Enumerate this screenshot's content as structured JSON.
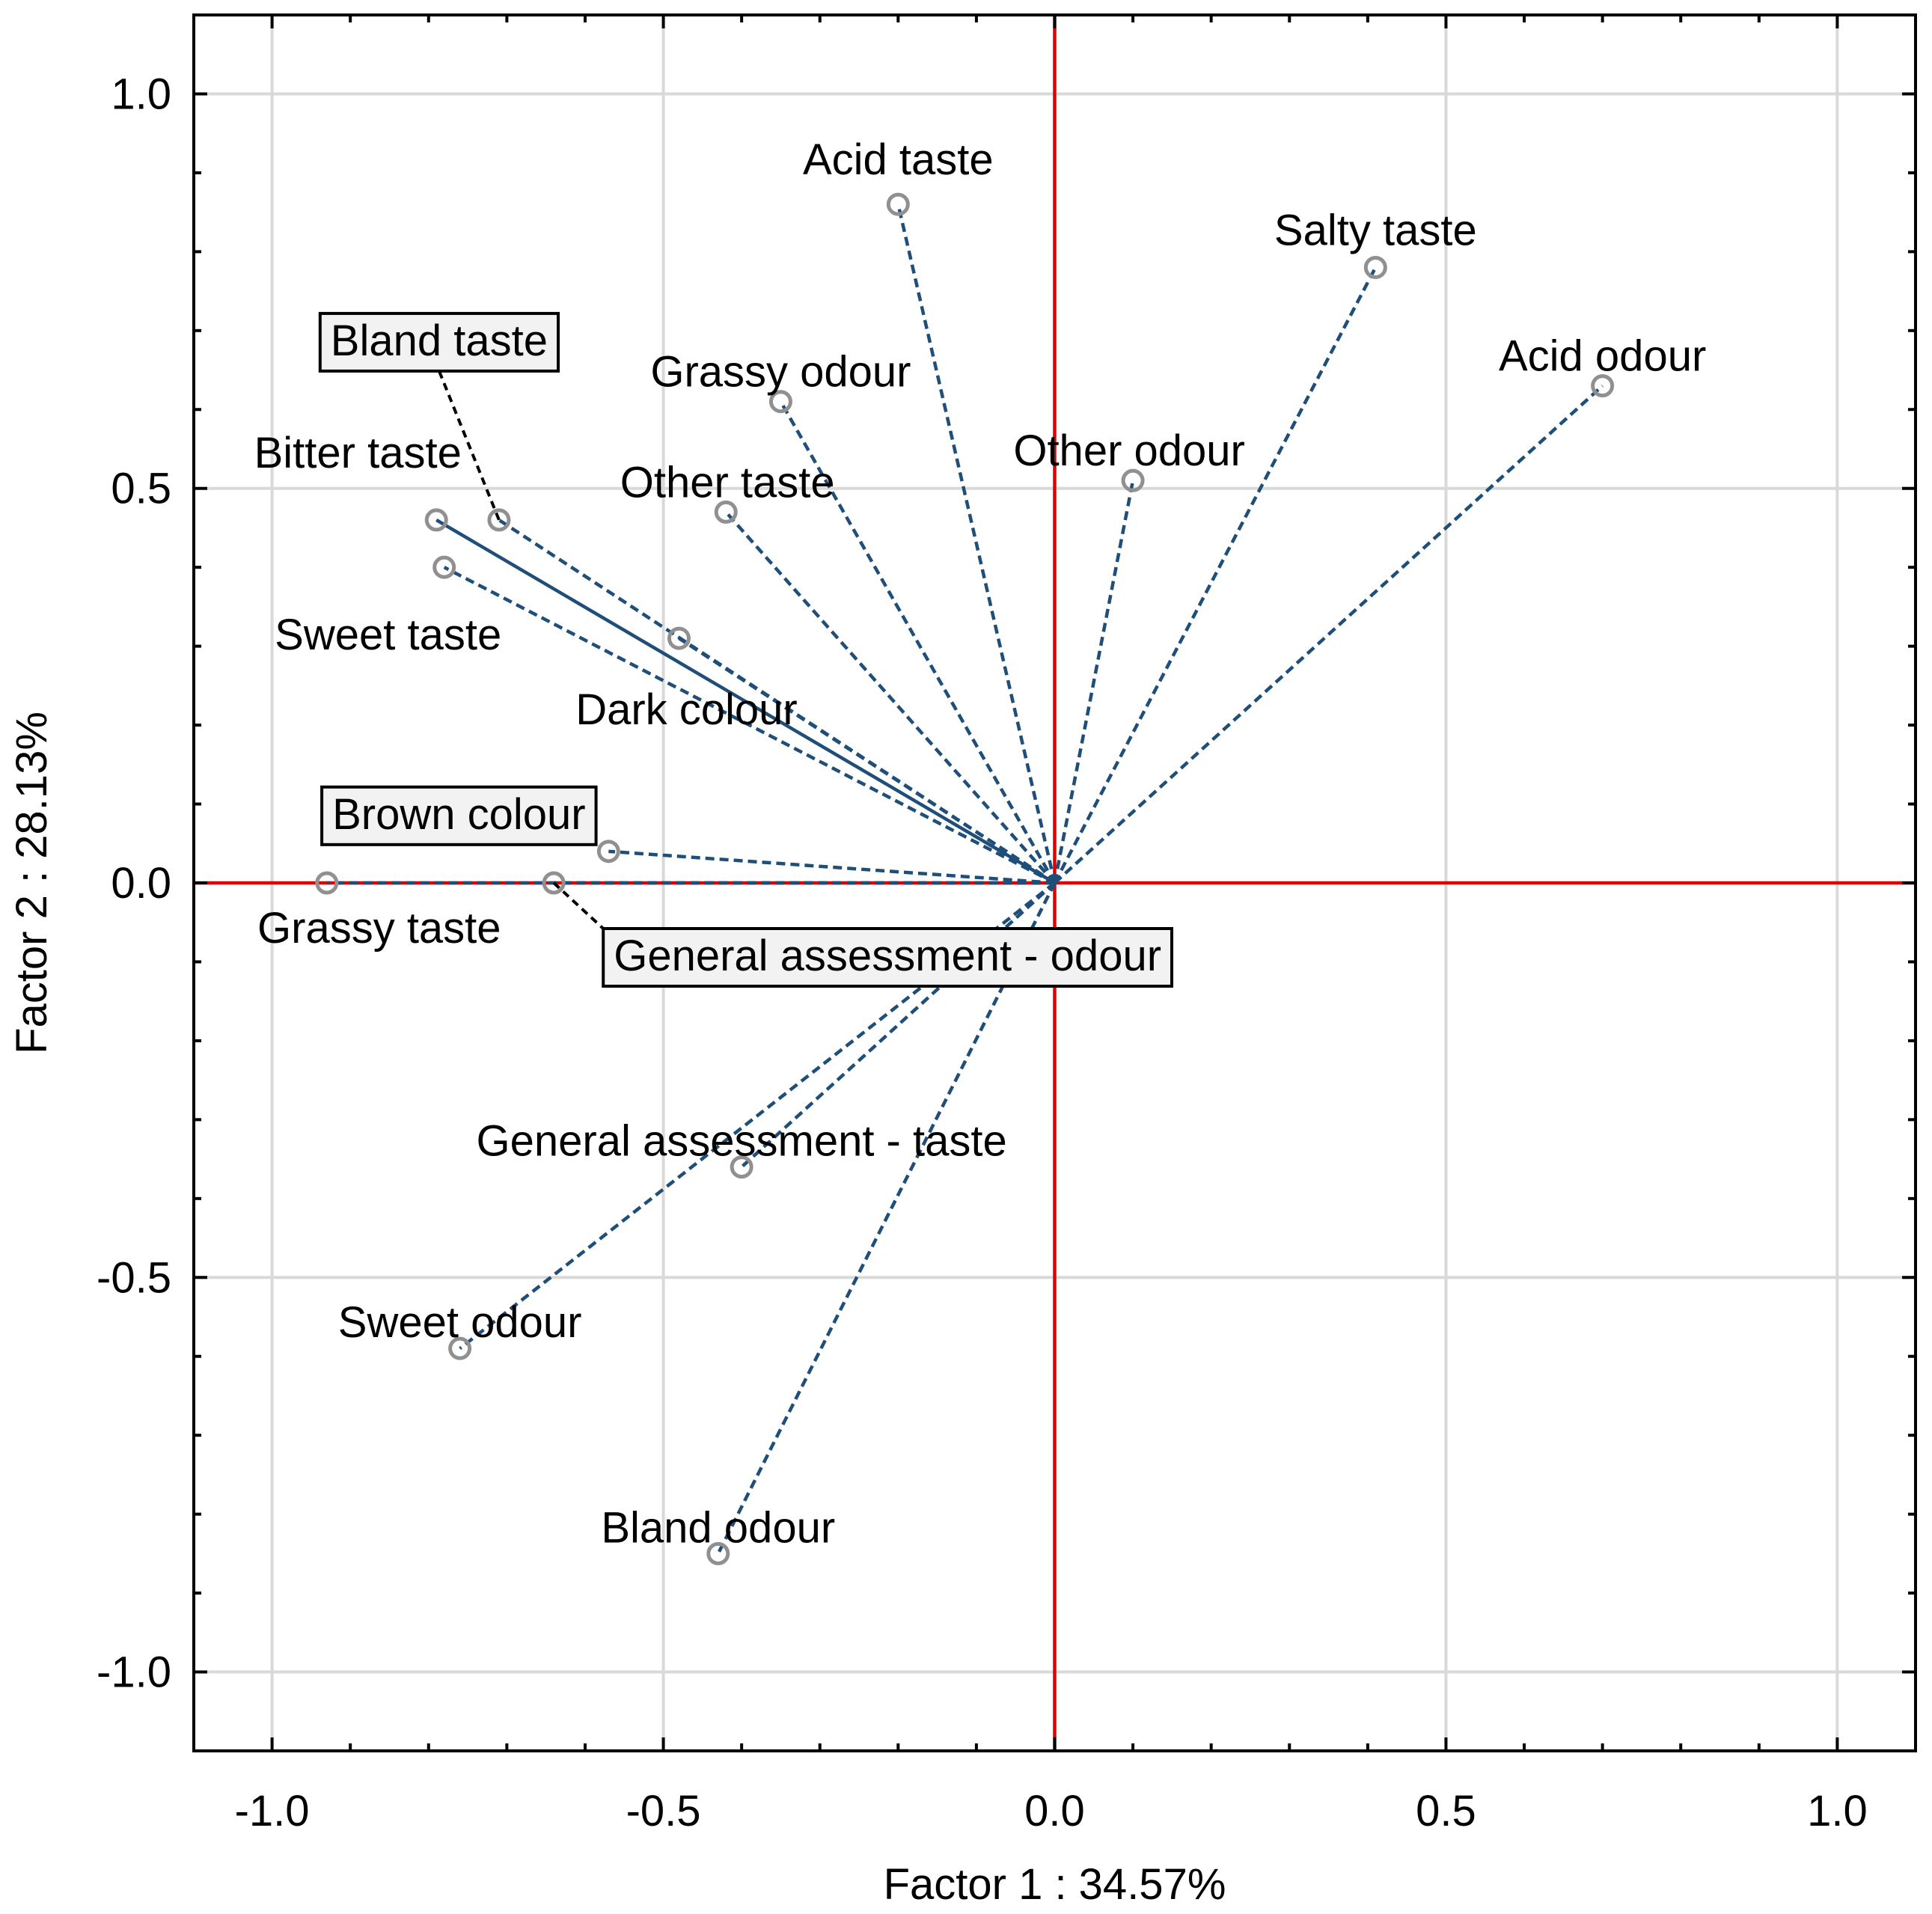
{
  "chart_data": {
    "type": "scatter",
    "subtype": "pca-loadings-biplot",
    "xlabel": "Factor 1 : 34.57%",
    "ylabel": "Factor 2  : 28.13%",
    "xlim": [
      -1.1,
      1.1
    ],
    "ylim": [
      -1.1,
      1.1
    ],
    "x_ticks": [
      "-1.0",
      "-0.5",
      "0.0",
      "0.5",
      "1.0"
    ],
    "y_ticks": [
      "1.0",
      "0.5",
      "0.0",
      "-0.5",
      "-1.0"
    ],
    "x_tick_values": [
      -1.0,
      -0.5,
      0.0,
      0.5,
      1.0
    ],
    "y_tick_values": [
      1.0,
      0.5,
      0.0,
      -0.5,
      -1.0
    ],
    "grid": true,
    "zero_lines_color": "#e00000",
    "vector_color": "#1f4e79",
    "points": [
      {
        "label": "Acid taste",
        "x": -0.2,
        "y": 0.86
      },
      {
        "label": "Salty taste",
        "x": 0.41,
        "y": 0.78
      },
      {
        "label": "Acid odour",
        "x": 0.7,
        "y": 0.63
      },
      {
        "label": "Grassy odour",
        "x": -0.35,
        "y": 0.61
      },
      {
        "label": "Other odour",
        "x": 0.1,
        "y": 0.51
      },
      {
        "label": "Bland taste",
        "x": -0.71,
        "y": 0.46,
        "boxed": true
      },
      {
        "label": "Bitter taste",
        "x": -0.79,
        "y": 0.46
      },
      {
        "label": "Other taste",
        "x": -0.42,
        "y": 0.47
      },
      {
        "label": "Sweet taste",
        "x": -0.78,
        "y": 0.4
      },
      {
        "label": "Dark colour",
        "x": -0.48,
        "y": 0.31
      },
      {
        "label": "Brown colour",
        "x": -0.57,
        "y": 0.04,
        "boxed": true
      },
      {
        "label": "Grassy taste",
        "x": -0.93,
        "y": 0.0
      },
      {
        "label": "General assessment - odour",
        "x": -0.64,
        "y": 0.0,
        "boxed": true
      },
      {
        "label": "General assessment - taste",
        "x": -0.4,
        "y": -0.36
      },
      {
        "label": "Sweet odour",
        "x": -0.76,
        "y": -0.59
      },
      {
        "label": "Bland odour",
        "x": -0.43,
        "y": -0.85
      }
    ]
  }
}
